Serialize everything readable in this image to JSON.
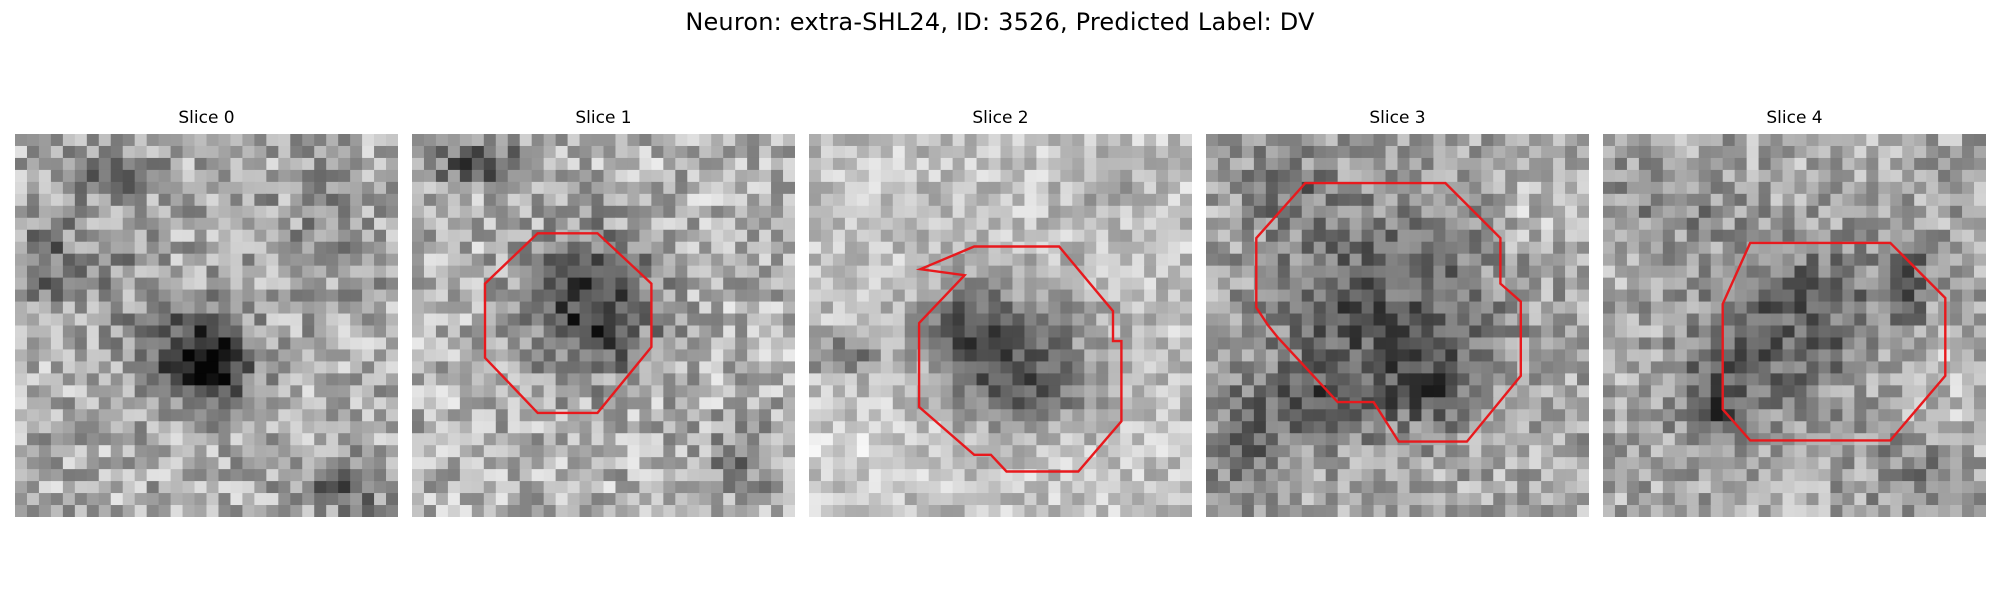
{
  "figure": {
    "title": "Neuron: extra-SHL24, ID: 3526, Predicted Label: DV"
  },
  "panels": [
    {
      "title": "Slice 0",
      "outline": false
    },
    {
      "title": "Slice 1",
      "outline": true
    },
    {
      "title": "Slice 2",
      "outline": true
    },
    {
      "title": "Slice 3",
      "outline": true
    },
    {
      "title": "Slice 4",
      "outline": true
    }
  ],
  "colors": {
    "outline": "#e8191d",
    "colormap": "grayscale"
  }
}
